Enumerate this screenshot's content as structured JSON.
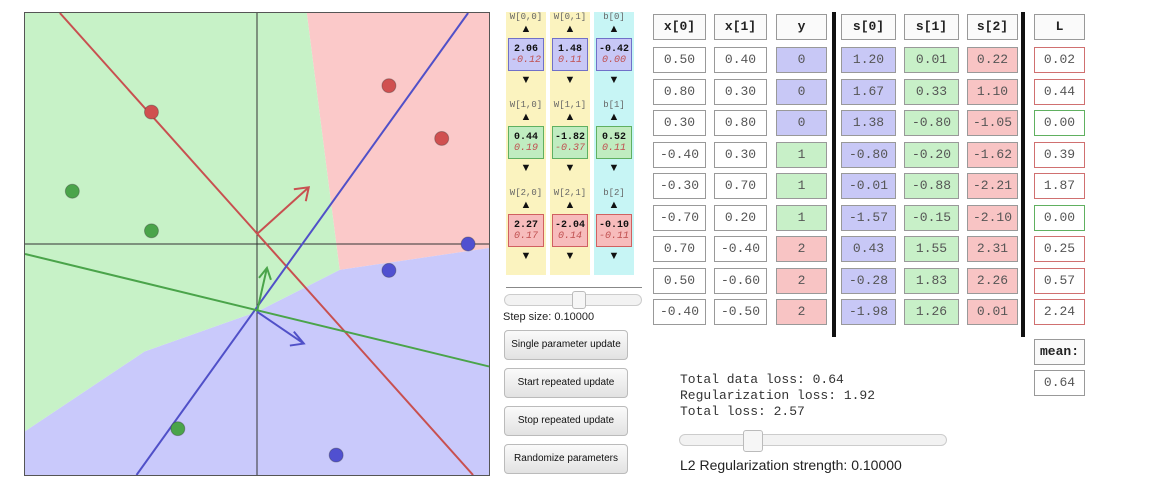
{
  "colors": {
    "class0": "#5050d0",
    "class1": "#4aa44a",
    "class2": "#d05050",
    "region0": "#c9c9fb",
    "region1": "#c7f2c7",
    "region2": "#fbc9c9"
  },
  "params": [
    {
      "labels": [
        "W[0,0]",
        "W[0,1]",
        "b[0]"
      ],
      "values": [
        "2.06",
        "1.48",
        "-0.42"
      ],
      "grads": [
        "-0.12",
        "0.11",
        "0.00"
      ]
    },
    {
      "labels": [
        "W[1,0]",
        "W[1,1]",
        "b[1]"
      ],
      "values": [
        "0.44",
        "-1.82",
        "0.52"
      ],
      "grads": [
        "0.19",
        "-0.37",
        "0.11"
      ]
    },
    {
      "labels": [
        "W[2,0]",
        "W[2,1]",
        "b[2]"
      ],
      "values": [
        "2.27",
        "-2.04",
        "-0.10"
      ],
      "grads": [
        "0.17",
        "0.14",
        "-0.11"
      ]
    }
  ],
  "step": {
    "label": "Step size: 0.10000",
    "fraction": 0.55
  },
  "buttons": {
    "single": "Single parameter update",
    "start": "Start repeated update",
    "stop": "Stop repeated update",
    "randomize": "Randomize parameters"
  },
  "table": {
    "headers": [
      "x[0]",
      "x[1]",
      "y",
      "s[0]",
      "s[1]",
      "s[2]",
      "L"
    ],
    "rows": [
      {
        "x0": "0.50",
        "x1": "0.40",
        "y": "0",
        "s0": "1.20",
        "s1": "0.01",
        "s2": "0.22",
        "L": "0.02"
      },
      {
        "x0": "0.80",
        "x1": "0.30",
        "y": "0",
        "s0": "1.67",
        "s1": "0.33",
        "s2": "1.10",
        "L": "0.44"
      },
      {
        "x0": "0.30",
        "x1": "0.80",
        "y": "0",
        "s0": "1.38",
        "s1": "-0.80",
        "s2": "-1.05",
        "L": "0.00"
      },
      {
        "x0": "-0.40",
        "x1": "0.30",
        "y": "1",
        "s0": "-0.80",
        "s1": "-0.20",
        "s2": "-1.62",
        "L": "0.39"
      },
      {
        "x0": "-0.30",
        "x1": "0.70",
        "y": "1",
        "s0": "-0.01",
        "s1": "-0.88",
        "s2": "-2.21",
        "L": "1.87"
      },
      {
        "x0": "-0.70",
        "x1": "0.20",
        "y": "1",
        "s0": "-1.57",
        "s1": "-0.15",
        "s2": "-2.10",
        "L": "0.00"
      },
      {
        "x0": "0.70",
        "x1": "-0.40",
        "y": "2",
        "s0": "0.43",
        "s1": "1.55",
        "s2": "2.31",
        "L": "0.25"
      },
      {
        "x0": "0.50",
        "x1": "-0.60",
        "y": "2",
        "s0": "-0.28",
        "s1": "1.83",
        "s2": "2.26",
        "L": "0.57"
      },
      {
        "x0": "-0.40",
        "x1": "-0.50",
        "y": "2",
        "s0": "-1.98",
        "s1": "1.26",
        "s2": "0.01",
        "L": "2.24"
      }
    ],
    "mean_label": "mean:",
    "mean_value": "0.64"
  },
  "loss": {
    "data": "Total data loss: 0.64",
    "reg": "Regularization loss: 1.92",
    "total": "Total loss: 2.57"
  },
  "l2": {
    "label": "L2 Regularization strength: 0.10000",
    "fraction": 0.26
  },
  "viz": {
    "points": [
      {
        "x": -0.7,
        "y": 0.2,
        "c": 1
      },
      {
        "x": -0.4,
        "y": 0.05,
        "c": 1
      },
      {
        "x": -0.3,
        "y": -0.7,
        "c": 1
      },
      {
        "x": 0.5,
        "y": -0.1,
        "c": 0
      },
      {
        "x": 0.8,
        "y": 0.0,
        "c": 0
      },
      {
        "x": 0.3,
        "y": -0.8,
        "c": 0
      },
      {
        "x": -0.4,
        "y": 0.5,
        "c": 2
      },
      {
        "x": 0.5,
        "y": 0.6,
        "c": 2
      },
      {
        "x": 0.7,
        "y": 0.4,
        "c": 2
      }
    ]
  }
}
